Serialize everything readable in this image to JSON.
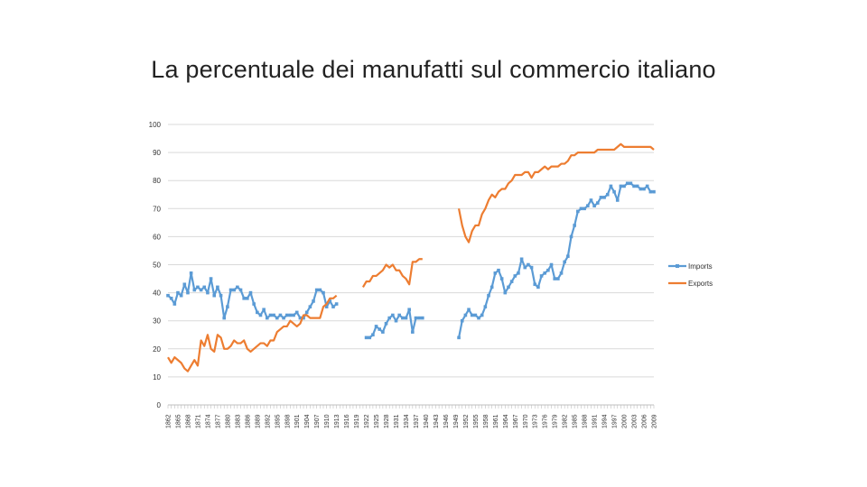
{
  "slide": {
    "title": "La percentuale dei manufatti sul commercio italiano"
  },
  "chart_data": {
    "type": "line",
    "title": "",
    "xlabel": "",
    "ylabel": "",
    "ylim": [
      0,
      100
    ],
    "y_ticks": [
      0,
      10,
      20,
      30,
      40,
      50,
      60,
      70,
      80,
      90,
      100
    ],
    "x_range": [
      1862,
      2009
    ],
    "x_tick_labels": [
      "1862",
      "1865",
      "1868",
      "1871",
      "1874",
      "1877",
      "1880",
      "1883",
      "1886",
      "1889",
      "1892",
      "1895",
      "1898",
      "1901",
      "1904",
      "1907",
      "1910",
      "1913",
      "1916",
      "1919",
      "1922",
      "1925",
      "1928",
      "1931",
      "1934",
      "1937",
      "1940",
      "1943",
      "1946",
      "1949",
      "1952",
      "1955",
      "1958",
      "1961",
      "1964",
      "1967",
      "1970",
      "1973",
      "1976",
      "1979",
      "1982",
      "1985",
      "1988",
      "1991",
      "1994",
      "1997",
      "2000",
      "2003",
      "2006",
      "2009"
    ],
    "grid": "horizontal",
    "legend_position": "right",
    "series": [
      {
        "name": "Imports",
        "color": "#5b9bd5",
        "marker": "square",
        "segments": [
          [
            [
              1862,
              39
            ],
            [
              1863,
              38
            ],
            [
              1864,
              36
            ],
            [
              1865,
              40
            ],
            [
              1866,
              39
            ],
            [
              1867,
              43
            ],
            [
              1868,
              40
            ],
            [
              1869,
              47
            ],
            [
              1870,
              41
            ],
            [
              1871,
              42
            ],
            [
              1872,
              41
            ],
            [
              1873,
              42
            ],
            [
              1874,
              40
            ],
            [
              1875,
              45
            ],
            [
              1876,
              39
            ],
            [
              1877,
              42
            ],
            [
              1878,
              39
            ],
            [
              1879,
              31
            ],
            [
              1880,
              35
            ],
            [
              1881,
              41
            ],
            [
              1882,
              41
            ],
            [
              1883,
              42
            ],
            [
              1884,
              41
            ],
            [
              1885,
              38
            ],
            [
              1886,
              38
            ],
            [
              1887,
              40
            ],
            [
              1888,
              36
            ],
            [
              1889,
              33
            ],
            [
              1890,
              32
            ],
            [
              1891,
              34
            ],
            [
              1892,
              31
            ],
            [
              1893,
              32
            ],
            [
              1894,
              32
            ],
            [
              1895,
              31
            ],
            [
              1896,
              32
            ],
            [
              1897,
              31
            ],
            [
              1898,
              32
            ],
            [
              1899,
              32
            ],
            [
              1900,
              32
            ],
            [
              1901,
              33
            ],
            [
              1902,
              31
            ],
            [
              1903,
              31
            ],
            [
              1904,
              33
            ],
            [
              1905,
              35
            ],
            [
              1906,
              37
            ],
            [
              1907,
              41
            ],
            [
              1908,
              41
            ],
            [
              1909,
              40
            ],
            [
              1910,
              35
            ],
            [
              1911,
              37
            ],
            [
              1912,
              35
            ],
            [
              1913,
              36
            ]
          ],
          [
            [
              1922,
              24
            ],
            [
              1923,
              24
            ],
            [
              1924,
              25
            ],
            [
              1925,
              28
            ],
            [
              1926,
              27
            ],
            [
              1927,
              26
            ],
            [
              1928,
              29
            ],
            [
              1929,
              31
            ],
            [
              1930,
              32
            ],
            [
              1931,
              30
            ],
            [
              1932,
              32
            ],
            [
              1933,
              31
            ],
            [
              1934,
              31
            ],
            [
              1935,
              34
            ],
            [
              1936,
              26
            ],
            [
              1937,
              31
            ],
            [
              1938,
              31
            ],
            [
              1939,
              31
            ]
          ],
          [
            [
              1950,
              24
            ],
            [
              1951,
              30
            ],
            [
              1952,
              32
            ],
            [
              1953,
              34
            ],
            [
              1954,
              32
            ],
            [
              1955,
              32
            ],
            [
              1956,
              31
            ],
            [
              1957,
              32
            ],
            [
              1958,
              35
            ],
            [
              1959,
              39
            ],
            [
              1960,
              42
            ],
            [
              1961,
              47
            ],
            [
              1962,
              48
            ],
            [
              1963,
              45
            ],
            [
              1964,
              40
            ],
            [
              1965,
              42
            ],
            [
              1966,
              44
            ],
            [
              1967,
              46
            ],
            [
              1968,
              47
            ],
            [
              1969,
              52
            ],
            [
              1970,
              49
            ],
            [
              1971,
              50
            ],
            [
              1972,
              49
            ],
            [
              1973,
              43
            ],
            [
              1974,
              42
            ],
            [
              1975,
              46
            ],
            [
              1976,
              47
            ],
            [
              1977,
              48
            ],
            [
              1978,
              50
            ],
            [
              1979,
              45
            ],
            [
              1980,
              45
            ],
            [
              1981,
              47
            ],
            [
              1982,
              51
            ],
            [
              1983,
              53
            ],
            [
              1984,
              60
            ],
            [
              1985,
              64
            ],
            [
              1986,
              69
            ],
            [
              1987,
              70
            ],
            [
              1988,
              70
            ],
            [
              1989,
              71
            ],
            [
              1990,
              73
            ],
            [
              1991,
              71
            ],
            [
              1992,
              72
            ],
            [
              1993,
              74
            ],
            [
              1994,
              74
            ],
            [
              1995,
              75
            ],
            [
              1996,
              78
            ],
            [
              1997,
              76
            ],
            [
              1998,
              73
            ],
            [
              1999,
              78
            ],
            [
              2000,
              78
            ],
            [
              2001,
              79
            ],
            [
              2002,
              79
            ],
            [
              2003,
              78
            ],
            [
              2004,
              78
            ],
            [
              2005,
              77
            ],
            [
              2006,
              77
            ],
            [
              2007,
              78
            ],
            [
              2008,
              76
            ],
            [
              2009,
              76
            ]
          ]
        ]
      },
      {
        "name": "Exports",
        "color": "#ed7d31",
        "marker": "none",
        "segments": [
          [
            [
              1862,
              17
            ],
            [
              1863,
              15
            ],
            [
              1864,
              17
            ],
            [
              1865,
              16
            ],
            [
              1866,
              15
            ],
            [
              1867,
              13
            ],
            [
              1868,
              12
            ],
            [
              1869,
              14
            ],
            [
              1870,
              16
            ],
            [
              1871,
              14
            ],
            [
              1872,
              23
            ],
            [
              1873,
              21
            ],
            [
              1874,
              25
            ],
            [
              1875,
              20
            ],
            [
              1876,
              19
            ],
            [
              1877,
              25
            ],
            [
              1878,
              24
            ],
            [
              1879,
              20
            ],
            [
              1880,
              20
            ],
            [
              1881,
              21
            ],
            [
              1882,
              23
            ],
            [
              1883,
              22
            ],
            [
              1884,
              22
            ],
            [
              1885,
              23
            ],
            [
              1886,
              20
            ],
            [
              1887,
              19
            ],
            [
              1888,
              20
            ],
            [
              1889,
              21
            ],
            [
              1890,
              22
            ],
            [
              1891,
              22
            ],
            [
              1892,
              21
            ],
            [
              1893,
              23
            ],
            [
              1894,
              23
            ],
            [
              1895,
              26
            ],
            [
              1896,
              27
            ],
            [
              1897,
              28
            ],
            [
              1898,
              28
            ],
            [
              1899,
              30
            ],
            [
              1900,
              29
            ],
            [
              1901,
              28
            ],
            [
              1902,
              29
            ],
            [
              1903,
              32
            ],
            [
              1904,
              32
            ],
            [
              1905,
              31
            ],
            [
              1906,
              31
            ],
            [
              1907,
              31
            ],
            [
              1908,
              31
            ],
            [
              1909,
              35
            ],
            [
              1910,
              36
            ],
            [
              1911,
              38
            ],
            [
              1912,
              38
            ],
            [
              1913,
              39
            ]
          ],
          [
            [
              1921,
              42
            ],
            [
              1922,
              44
            ],
            [
              1923,
              44
            ],
            [
              1924,
              46
            ],
            [
              1925,
              46
            ],
            [
              1926,
              47
            ],
            [
              1927,
              48
            ],
            [
              1928,
              50
            ],
            [
              1929,
              49
            ],
            [
              1930,
              50
            ],
            [
              1931,
              48
            ],
            [
              1932,
              48
            ],
            [
              1933,
              46
            ],
            [
              1934,
              45
            ],
            [
              1935,
              43
            ],
            [
              1936,
              51
            ],
            [
              1937,
              51
            ],
            [
              1938,
              52
            ],
            [
              1939,
              52
            ]
          ],
          [
            [
              1950,
              70
            ],
            [
              1951,
              64
            ],
            [
              1952,
              60
            ],
            [
              1953,
              58
            ],
            [
              1954,
              62
            ],
            [
              1955,
              64
            ],
            [
              1956,
              64
            ],
            [
              1957,
              68
            ],
            [
              1958,
              70
            ],
            [
              1959,
              73
            ],
            [
              1960,
              75
            ],
            [
              1961,
              74
            ],
            [
              1962,
              76
            ],
            [
              1963,
              77
            ],
            [
              1964,
              77
            ],
            [
              1965,
              79
            ],
            [
              1966,
              80
            ],
            [
              1967,
              82
            ],
            [
              1968,
              82
            ],
            [
              1969,
              82
            ],
            [
              1970,
              83
            ],
            [
              1971,
              83
            ],
            [
              1972,
              81
            ],
            [
              1973,
              83
            ],
            [
              1974,
              83
            ],
            [
              1975,
              84
            ],
            [
              1976,
              85
            ],
            [
              1977,
              84
            ],
            [
              1978,
              85
            ],
            [
              1979,
              85
            ],
            [
              1980,
              85
            ],
            [
              1981,
              86
            ],
            [
              1982,
              86
            ],
            [
              1983,
              87
            ],
            [
              1984,
              89
            ],
            [
              1985,
              89
            ],
            [
              1986,
              90
            ],
            [
              1987,
              90
            ],
            [
              1988,
              90
            ],
            [
              1989,
              90
            ],
            [
              1990,
              90
            ],
            [
              1991,
              90
            ],
            [
              1992,
              91
            ],
            [
              1993,
              91
            ],
            [
              1994,
              91
            ],
            [
              1995,
              91
            ],
            [
              1996,
              91
            ],
            [
              1997,
              91
            ],
            [
              1998,
              92
            ],
            [
              1999,
              93
            ],
            [
              2000,
              92
            ],
            [
              2001,
              92
            ],
            [
              2002,
              92
            ],
            [
              2003,
              92
            ],
            [
              2004,
              92
            ],
            [
              2005,
              92
            ],
            [
              2006,
              92
            ],
            [
              2007,
              92
            ],
            [
              2008,
              92
            ],
            [
              2009,
              91
            ]
          ]
        ]
      }
    ]
  }
}
